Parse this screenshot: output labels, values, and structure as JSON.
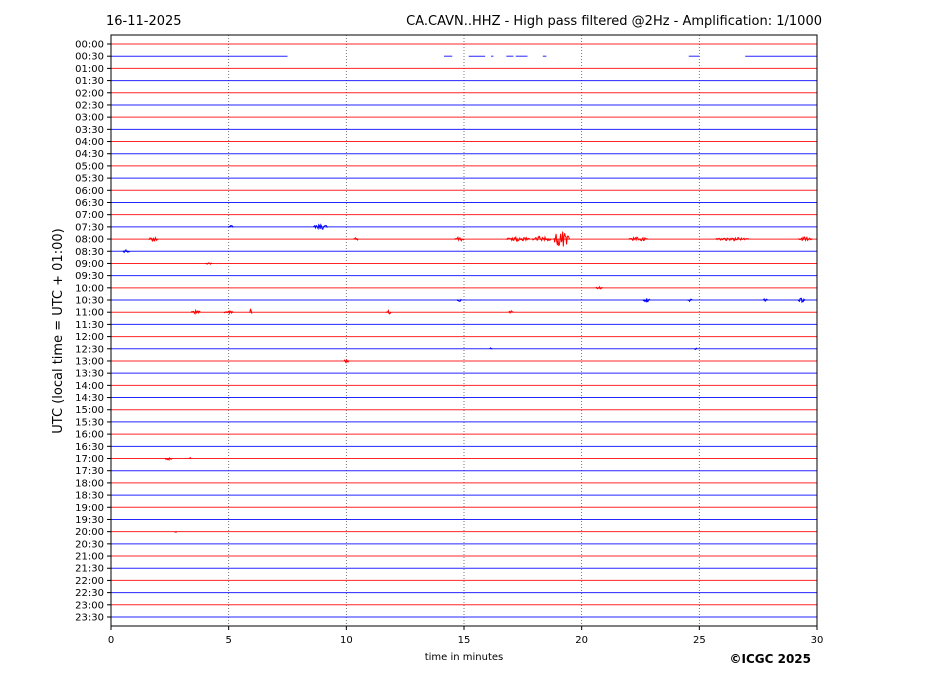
{
  "chart_data": {
    "type": "line",
    "title_left": "16-11-2025",
    "title": "CA.CAVN..HHZ - High pass filtered @2Hz - Amplification: 1/1000",
    "xlabel": "time in minutes",
    "ylabel": "UTC (local time = UTC + 01:00)",
    "xlim": [
      0,
      30
    ],
    "xticks": [
      0,
      5,
      10,
      15,
      20,
      25,
      30
    ],
    "xtick_labels": [
      "0",
      "5",
      "10",
      "15",
      "20",
      "25",
      "30"
    ],
    "grid": "vertical dotted at every 5 minutes",
    "colors": [
      "#ff0000",
      "#0000ff"
    ],
    "row_labels": [
      "00:00",
      "00:30",
      "01:00",
      "01:30",
      "02:00",
      "02:30",
      "03:00",
      "03:30",
      "04:00",
      "04:30",
      "05:00",
      "05:30",
      "06:00",
      "06:30",
      "07:00",
      "07:30",
      "08:00",
      "08:30",
      "09:00",
      "09:30",
      "10:00",
      "10:30",
      "11:00",
      "11:30",
      "12:00",
      "12:30",
      "13:00",
      "13:30",
      "14:00",
      "14:30",
      "15:00",
      "15:30",
      "16:00",
      "16:30",
      "17:00",
      "17:30",
      "18:00",
      "18:30",
      "19:00",
      "19:30",
      "20:00",
      "20:30",
      "21:00",
      "21:30",
      "22:00",
      "22:30",
      "23:00",
      "23:30"
    ],
    "data_segments": {
      "00:30": [
        [
          0,
          7.5
        ],
        [
          14.15,
          14.5
        ],
        [
          15.2,
          15.9
        ],
        [
          16.15,
          16.25
        ],
        [
          16.8,
          17.1
        ],
        [
          17.2,
          17.7
        ],
        [
          18.35,
          18.5
        ],
        [
          24.55,
          25.0
        ],
        [
          26.95,
          30
        ]
      ]
    },
    "events": [
      {
        "row": "07:30",
        "minute": 5.0,
        "duration": 0.2,
        "amplitude": 1
      },
      {
        "row": "07:30",
        "minute": 8.6,
        "duration": 0.6,
        "amplitude": 2
      },
      {
        "row": "08:00",
        "minute": 1.6,
        "duration": 0.4,
        "amplitude": 1.5
      },
      {
        "row": "08:00",
        "minute": 10.3,
        "duration": 0.2,
        "amplitude": 1
      },
      {
        "row": "08:00",
        "minute": 14.6,
        "duration": 0.4,
        "amplitude": 1.5
      },
      {
        "row": "08:00",
        "minute": 16.8,
        "duration": 1.0,
        "amplitude": 1.5
      },
      {
        "row": "08:00",
        "minute": 17.9,
        "duration": 0.8,
        "amplitude": 2
      },
      {
        "row": "08:00",
        "minute": 18.8,
        "duration": 0.7,
        "amplitude": 6
      },
      {
        "row": "08:00",
        "minute": 22.0,
        "duration": 0.8,
        "amplitude": 1.5
      },
      {
        "row": "08:00",
        "minute": 25.7,
        "duration": 1.4,
        "amplitude": 1.2
      },
      {
        "row": "08:00",
        "minute": 29.2,
        "duration": 0.6,
        "amplitude": 1.5
      },
      {
        "row": "08:30",
        "minute": 0.5,
        "duration": 0.3,
        "amplitude": 1.2
      },
      {
        "row": "09:00",
        "minute": 4.0,
        "duration": 0.3,
        "amplitude": 0.8
      },
      {
        "row": "10:00",
        "minute": 20.6,
        "duration": 0.3,
        "amplitude": 0.8
      },
      {
        "row": "10:30",
        "minute": 14.7,
        "duration": 0.2,
        "amplitude": 1.2
      },
      {
        "row": "10:30",
        "minute": 22.6,
        "duration": 0.3,
        "amplitude": 1.5
      },
      {
        "row": "10:30",
        "minute": 24.5,
        "duration": 0.2,
        "amplitude": 1
      },
      {
        "row": "10:30",
        "minute": 27.7,
        "duration": 0.2,
        "amplitude": 1
      },
      {
        "row": "10:30",
        "minute": 29.2,
        "duration": 0.3,
        "amplitude": 1.5
      },
      {
        "row": "11:00",
        "minute": 3.4,
        "duration": 0.4,
        "amplitude": 1.5
      },
      {
        "row": "11:00",
        "minute": 4.8,
        "duration": 0.4,
        "amplitude": 1
      },
      {
        "row": "11:00",
        "minute": 5.9,
        "duration": 0.1,
        "amplitude": 3
      },
      {
        "row": "11:00",
        "minute": 11.7,
        "duration": 0.2,
        "amplitude": 1.5
      },
      {
        "row": "11:00",
        "minute": 16.9,
        "duration": 0.2,
        "amplitude": 1
      },
      {
        "row": "12:30",
        "minute": 16.1,
        "duration": 0.1,
        "amplitude": 1
      },
      {
        "row": "12:30",
        "minute": 24.8,
        "duration": 0.1,
        "amplitude": 1
      },
      {
        "row": "13:00",
        "minute": 9.9,
        "duration": 0.2,
        "amplitude": 1.5
      },
      {
        "row": "17:00",
        "minute": 2.3,
        "duration": 0.3,
        "amplitude": 1.2
      },
      {
        "row": "17:00",
        "minute": 3.3,
        "duration": 0.1,
        "amplitude": 0.8
      },
      {
        "row": "20:00",
        "minute": 2.7,
        "duration": 0.1,
        "amplitude": 0.8
      }
    ]
  },
  "copyright": "©ICGC 2025"
}
